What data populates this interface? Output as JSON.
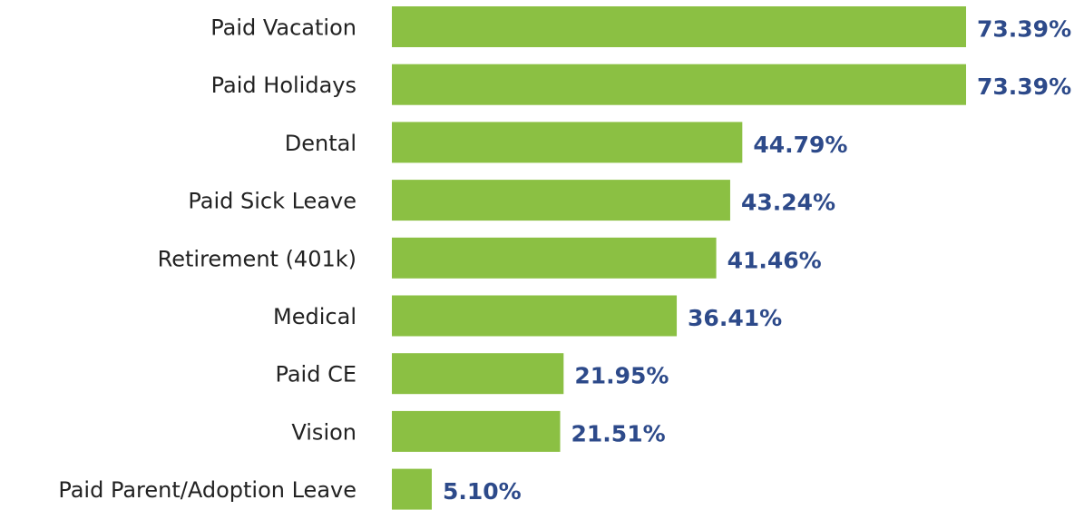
{
  "chart_data": {
    "type": "barh",
    "categories": [
      "Paid Vacation",
      "Paid Holidays",
      "Dental",
      "Paid Sick Leave",
      "Retirement (401k)",
      "Medical",
      "Paid CE",
      "Vision",
      "Paid Parent/Adoption Leave"
    ],
    "values": [
      73.39,
      73.39,
      44.79,
      43.24,
      41.46,
      36.41,
      21.95,
      21.51,
      5.1
    ],
    "value_labels": [
      "73.39%",
      "73.39%",
      "44.79%",
      "43.24%",
      "41.46%",
      "36.41%",
      "21.95%",
      "21.51%",
      "5.10%"
    ],
    "color": "#8bc043",
    "label_color": "#2d4a8a"
  }
}
